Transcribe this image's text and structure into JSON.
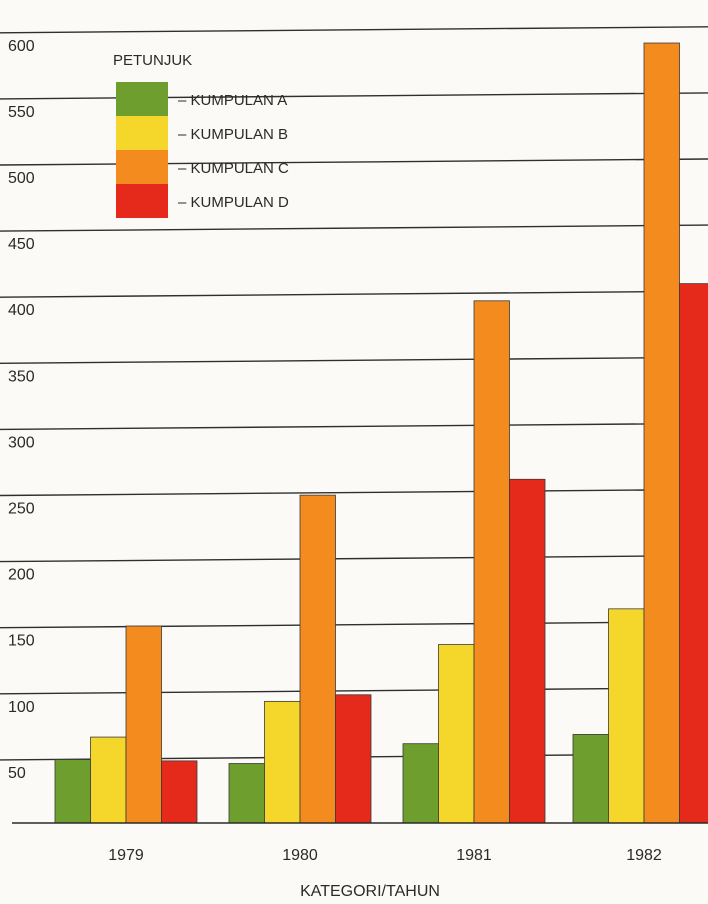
{
  "chart_data": {
    "type": "bar",
    "title": "",
    "xlabel": "KATEGORI/TAHUN",
    "ylabel": "",
    "ylim": [
      0,
      600
    ],
    "yticks": [
      50,
      100,
      150,
      200,
      250,
      300,
      350,
      400,
      450,
      500,
      550,
      600
    ],
    "grid": true,
    "legend_title": "PETUNJUK",
    "legend_position": "top-left",
    "categories": [
      "1979",
      "1980",
      "1981",
      "1982"
    ],
    "series": [
      {
        "name": "– KUMPULAN A",
        "color": "#6d9e2e",
        "values": [
          48,
          45,
          60,
          67
        ]
      },
      {
        "name": "– KUMPULAN B",
        "color": "#f4d72a",
        "values": [
          65,
          92,
          135,
          162
        ]
      },
      {
        "name": "– KUMPULAN C",
        "color": "#f48b1f",
        "values": [
          149,
          248,
          395,
          590
        ]
      },
      {
        "name": "– KUMPULAN D",
        "color": "#e52a1b",
        "values": [
          47,
          97,
          260,
          408
        ]
      }
    ]
  }
}
